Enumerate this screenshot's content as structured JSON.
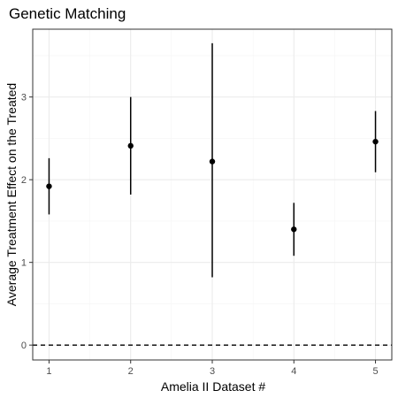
{
  "chart_data": {
    "type": "scatter",
    "title": "Genetic Matching",
    "xlabel": "Amelia II Dataset #",
    "ylabel": "Average Treatment Effect on the Treated",
    "x_ticks": [
      1,
      2,
      3,
      4,
      5
    ],
    "y_ticks": [
      0,
      1,
      2,
      3
    ],
    "xlim": [
      0.8,
      5.2
    ],
    "ylim": [
      -0.18,
      3.82
    ],
    "reference_line": {
      "y": 0,
      "style": "dashed"
    },
    "points": [
      {
        "x": 1,
        "y": 1.92,
        "lower": 1.58,
        "upper": 2.26
      },
      {
        "x": 2,
        "y": 2.41,
        "lower": 1.82,
        "upper": 3.0
      },
      {
        "x": 3,
        "y": 2.22,
        "lower": 0.82,
        "upper": 3.65
      },
      {
        "x": 4,
        "y": 1.4,
        "lower": 1.08,
        "upper": 1.72
      },
      {
        "x": 5,
        "y": 2.46,
        "lower": 2.09,
        "upper": 2.83
      }
    ],
    "grid": true,
    "colors": {
      "point": "#000000",
      "panel_border": "#333333",
      "grid_major": "#ebebeb",
      "grid_minor": "#f5f5f5"
    }
  }
}
